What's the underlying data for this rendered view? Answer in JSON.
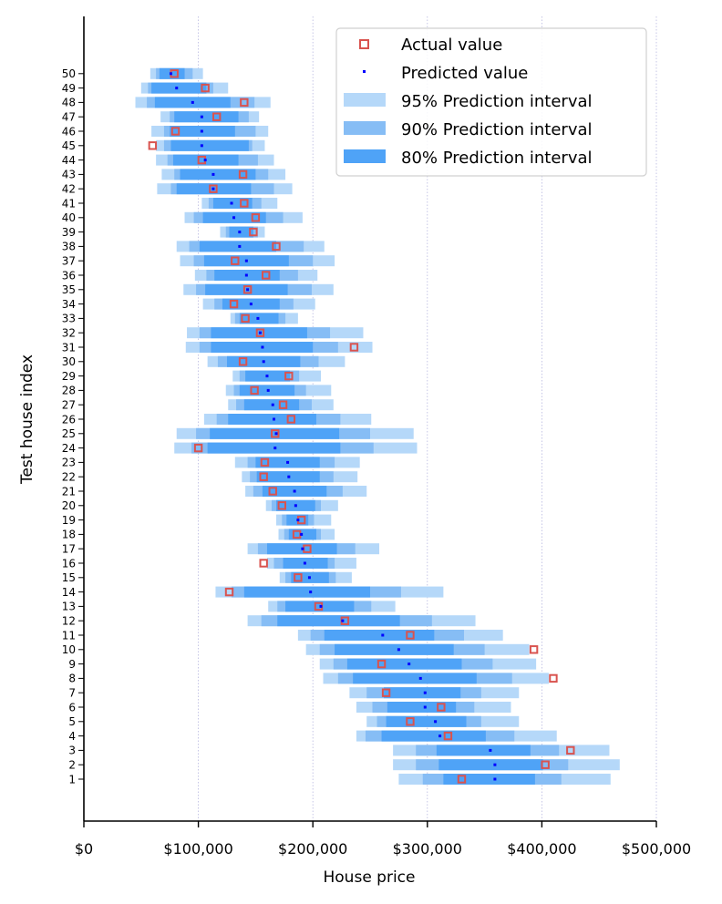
{
  "chart_data": {
    "type": "interval",
    "xlabel": "House price",
    "ylabel": "Test house index",
    "xlim": [
      0,
      500000
    ],
    "xticks": [
      0,
      100000,
      200000,
      300000,
      400000,
      500000
    ],
    "xtick_labels": [
      "$0",
      "$100,000",
      "$200,000",
      "$300,000",
      "$400,000",
      "$500,000"
    ],
    "grid": "vertical dotted",
    "legend_position": "top-right",
    "legend": [
      "Actual value",
      "Predicted value",
      "95% Prediction interval",
      "90% Prediction interval",
      "80% Prediction interval"
    ],
    "colors": {
      "actual": "#d9534f",
      "predicted": "#0000ff",
      "pi95": "#b5d8f9",
      "pi90": "#86bdf5",
      "pi80": "#4fa3f7"
    },
    "houses": [
      {
        "index": 1,
        "actual": 330000,
        "predicted": 359000,
        "pi80": [
          314000,
          394000
        ],
        "pi90": [
          296000,
          417000
        ],
        "pi95": [
          275000,
          460000
        ]
      },
      {
        "index": 2,
        "actual": 403000,
        "predicted": 359000,
        "pi80": [
          310000,
          401000
        ],
        "pi90": [
          290000,
          423000
        ],
        "pi95": [
          270000,
          468000
        ]
      },
      {
        "index": 3,
        "actual": 425000,
        "predicted": 355000,
        "pi80": [
          308000,
          390000
        ],
        "pi90": [
          290000,
          415000
        ],
        "pi95": [
          270000,
          459000
        ]
      },
      {
        "index": 4,
        "actual": 318000,
        "predicted": 311000,
        "pi80": [
          260000,
          351000
        ],
        "pi90": [
          246000,
          376000
        ],
        "pi95": [
          238000,
          413000
        ]
      },
      {
        "index": 5,
        "actual": 285000,
        "predicted": 307000,
        "pi80": [
          264000,
          334000
        ],
        "pi90": [
          256000,
          347000
        ],
        "pi95": [
          247000,
          380000
        ]
      },
      {
        "index": 6,
        "actual": 312000,
        "predicted": 298000,
        "pi80": [
          265000,
          325000
        ],
        "pi90": [
          252000,
          341000
        ],
        "pi95": [
          238000,
          373000
        ]
      },
      {
        "index": 7,
        "actual": 264000,
        "predicted": 298000,
        "pi80": [
          262000,
          329000
        ],
        "pi90": [
          247000,
          347000
        ],
        "pi95": [
          232000,
          380000
        ]
      },
      {
        "index": 8,
        "actual": 410000,
        "predicted": 294000,
        "pi80": [
          235000,
          343000
        ],
        "pi90": [
          222000,
          374000
        ],
        "pi95": [
          209000,
          406000
        ]
      },
      {
        "index": 9,
        "actual": 260000,
        "predicted": 284000,
        "pi80": [
          230000,
          330000
        ],
        "pi90": [
          218000,
          357000
        ],
        "pi95": [
          206000,
          395000
        ]
      },
      {
        "index": 10,
        "actual": 393000,
        "predicted": 275000,
        "pi80": [
          219000,
          323000
        ],
        "pi90": [
          206000,
          350000
        ],
        "pi95": [
          194000,
          389000
        ]
      },
      {
        "index": 11,
        "actual": 285000,
        "predicted": 261000,
        "pi80": [
          210000,
          306000
        ],
        "pi90": [
          198000,
          332000
        ],
        "pi95": [
          187000,
          366000
        ]
      },
      {
        "index": 12,
        "actual": 228000,
        "predicted": 226000,
        "pi80": [
          169000,
          276000
        ],
        "pi90": [
          155000,
          304000
        ],
        "pi95": [
          143000,
          342000
        ]
      },
      {
        "index": 13,
        "actual": 205000,
        "predicted": 207000,
        "pi80": [
          176000,
          236000
        ],
        "pi90": [
          169000,
          251000
        ],
        "pi95": [
          161000,
          272000
        ]
      },
      {
        "index": 14,
        "actual": 127000,
        "predicted": 198000,
        "pi80": [
          140000,
          250000
        ],
        "pi90": [
          129000,
          277000
        ],
        "pi95": [
          115000,
          314000
        ]
      },
      {
        "index": 15,
        "actual": 187000,
        "predicted": 197000,
        "pi80": [
          181000,
          214000
        ],
        "pi90": [
          176000,
          220000
        ],
        "pi95": [
          171000,
          234000
        ]
      },
      {
        "index": 16,
        "actual": 157000,
        "predicted": 193000,
        "pi80": [
          174000,
          213000
        ],
        "pi90": [
          166000,
          219000
        ],
        "pi95": [
          160000,
          238000
        ]
      },
      {
        "index": 17,
        "actual": 195000,
        "predicted": 191000,
        "pi80": [
          160000,
          221000
        ],
        "pi90": [
          152000,
          237000
        ],
        "pi95": [
          143000,
          258000
        ]
      },
      {
        "index": 18,
        "actual": 186000,
        "predicted": 190000,
        "pi80": [
          179000,
          203000
        ],
        "pi90": [
          175000,
          207000
        ],
        "pi95": [
          170000,
          219000
        ]
      },
      {
        "index": 19,
        "actual": 190000,
        "predicted": 187000,
        "pi80": [
          177000,
          196000
        ],
        "pi90": [
          173000,
          201000
        ],
        "pi95": [
          168000,
          216000
        ]
      },
      {
        "index": 20,
        "actual": 173000,
        "predicted": 185000,
        "pi80": [
          168000,
          202000
        ],
        "pi90": [
          164000,
          207000
        ],
        "pi95": [
          159000,
          222000
        ]
      },
      {
        "index": 21,
        "actual": 165000,
        "predicted": 184000,
        "pi80": [
          156000,
          212000
        ],
        "pi90": [
          148000,
          226000
        ],
        "pi95": [
          141000,
          247000
        ]
      },
      {
        "index": 22,
        "actual": 157000,
        "predicted": 179000,
        "pi80": [
          151000,
          206000
        ],
        "pi90": [
          145000,
          218000
        ],
        "pi95": [
          138000,
          239000
        ]
      },
      {
        "index": 23,
        "actual": 158000,
        "predicted": 178000,
        "pi80": [
          150000,
          206000
        ],
        "pi90": [
          143000,
          219000
        ],
        "pi95": [
          132000,
          241000
        ]
      },
      {
        "index": 24,
        "actual": 100000,
        "predicted": 167000,
        "pi80": [
          108000,
          224000
        ],
        "pi90": [
          94000,
          253000
        ],
        "pi95": [
          79000,
          291000
        ]
      },
      {
        "index": 25,
        "actual": 167000,
        "predicted": 168000,
        "pi80": [
          110000,
          223000
        ],
        "pi90": [
          98000,
          250000
        ],
        "pi95": [
          81000,
          288000
        ]
      },
      {
        "index": 26,
        "actual": 181000,
        "predicted": 166000,
        "pi80": [
          126000,
          203000
        ],
        "pi90": [
          116000,
          224000
        ],
        "pi95": [
          105000,
          251000
        ]
      },
      {
        "index": 27,
        "actual": 174000,
        "predicted": 165000,
        "pi80": [
          140000,
          188000
        ],
        "pi90": [
          133000,
          199000
        ],
        "pi95": [
          126000,
          218000
        ]
      },
      {
        "index": 28,
        "actual": 149000,
        "predicted": 161000,
        "pi80": [
          136000,
          184000
        ],
        "pi90": [
          131000,
          194000
        ],
        "pi95": [
          124000,
          216000
        ]
      },
      {
        "index": 29,
        "actual": 179000,
        "predicted": 160000,
        "pi80": [
          141000,
          180000
        ],
        "pi90": [
          136000,
          188000
        ],
        "pi95": [
          130000,
          207000
        ]
      },
      {
        "index": 30,
        "actual": 139000,
        "predicted": 157000,
        "pi80": [
          125000,
          189000
        ],
        "pi90": [
          117000,
          205000
        ],
        "pi95": [
          108000,
          228000
        ]
      },
      {
        "index": 31,
        "actual": 236000,
        "predicted": 156000,
        "pi80": [
          111000,
          200000
        ],
        "pi90": [
          101000,
          222000
        ],
        "pi95": [
          89000,
          252000
        ]
      },
      {
        "index": 32,
        "actual": 154000,
        "predicted": 154000,
        "pi80": [
          111000,
          195000
        ],
        "pi90": [
          101000,
          215000
        ],
        "pi95": [
          90000,
          244000
        ]
      },
      {
        "index": 33,
        "actual": 141000,
        "predicted": 152000,
        "pi80": [
          136000,
          170000
        ],
        "pi90": [
          132000,
          176000
        ],
        "pi95": [
          128000,
          187000
        ]
      },
      {
        "index": 34,
        "actual": 131000,
        "predicted": 146000,
        "pi80": [
          121000,
          171000
        ],
        "pi90": [
          114000,
          183000
        ],
        "pi95": [
          104000,
          202000
        ]
      },
      {
        "index": 35,
        "actual": 143000,
        "predicted": 143000,
        "pi80": [
          106000,
          178000
        ],
        "pi90": [
          98000,
          199000
        ],
        "pi95": [
          87000,
          218000
        ]
      },
      {
        "index": 36,
        "actual": 159000,
        "predicted": 142000,
        "pi80": [
          114000,
          171000
        ],
        "pi90": [
          107000,
          187000
        ],
        "pi95": [
          97000,
          204000
        ]
      },
      {
        "index": 37,
        "actual": 132000,
        "predicted": 142000,
        "pi80": [
          105000,
          179000
        ],
        "pi90": [
          96000,
          200000
        ],
        "pi95": [
          84000,
          219000
        ]
      },
      {
        "index": 38,
        "actual": 168000,
        "predicted": 136000,
        "pi80": [
          101000,
          168000
        ],
        "pi90": [
          92000,
          192000
        ],
        "pi95": [
          81000,
          210000
        ]
      },
      {
        "index": 39,
        "actual": 148000,
        "predicted": 136000,
        "pi80": [
          127000,
          148000
        ],
        "pi90": [
          124000,
          152000
        ],
        "pi95": [
          119000,
          158000
        ]
      },
      {
        "index": 40,
        "actual": 150000,
        "predicted": 131000,
        "pi80": [
          104000,
          159000
        ],
        "pi90": [
          96000,
          174000
        ],
        "pi95": [
          88000,
          191000
        ]
      },
      {
        "index": 41,
        "actual": 140000,
        "predicted": 129000,
        "pi80": [
          113000,
          147000
        ],
        "pi90": [
          109000,
          155000
        ],
        "pi95": [
          103000,
          169000
        ]
      },
      {
        "index": 42,
        "actual": 113000,
        "predicted": 113000,
        "pi80": [
          81000,
          146000
        ],
        "pi90": [
          76000,
          166000
        ],
        "pi95": [
          64000,
          182000
        ]
      },
      {
        "index": 43,
        "actual": 139000,
        "predicted": 113000,
        "pi80": [
          84000,
          150000
        ],
        "pi90": [
          79000,
          161000
        ],
        "pi95": [
          68000,
          176000
        ]
      },
      {
        "index": 44,
        "actual": 103000,
        "predicted": 106000,
        "pi80": [
          78000,
          135000
        ],
        "pi90": [
          73000,
          152000
        ],
        "pi95": [
          63000,
          166000
        ]
      },
      {
        "index": 45,
        "actual": 60000,
        "predicted": 103000,
        "pi80": [
          76000,
          144000
        ],
        "pi90": [
          70000,
          147000
        ],
        "pi95": [
          63000,
          158000
        ]
      },
      {
        "index": 46,
        "actual": 80000,
        "predicted": 103000,
        "pi80": [
          75000,
          132000
        ],
        "pi90": [
          70000,
          150000
        ],
        "pi95": [
          59000,
          161000
        ]
      },
      {
        "index": 47,
        "actual": 116000,
        "predicted": 103000,
        "pi80": [
          79000,
          135000
        ],
        "pi90": [
          75000,
          144000
        ],
        "pi95": [
          67000,
          153000
        ]
      },
      {
        "index": 48,
        "actual": 140000,
        "predicted": 95000,
        "pi80": [
          62000,
          128000
        ],
        "pi90": [
          55000,
          149000
        ],
        "pi95": [
          45000,
          163000
        ]
      },
      {
        "index": 49,
        "actual": 106000,
        "predicted": 81000,
        "pi80": [
          59000,
          107000
        ],
        "pi90": [
          56000,
          113000
        ],
        "pi95": [
          50000,
          126000
        ]
      },
      {
        "index": 50,
        "actual": 79000,
        "predicted": 76000,
        "pi80": [
          66000,
          88000
        ],
        "pi90": [
          63000,
          95000
        ],
        "pi95": [
          58000,
          104000
        ]
      }
    ]
  }
}
